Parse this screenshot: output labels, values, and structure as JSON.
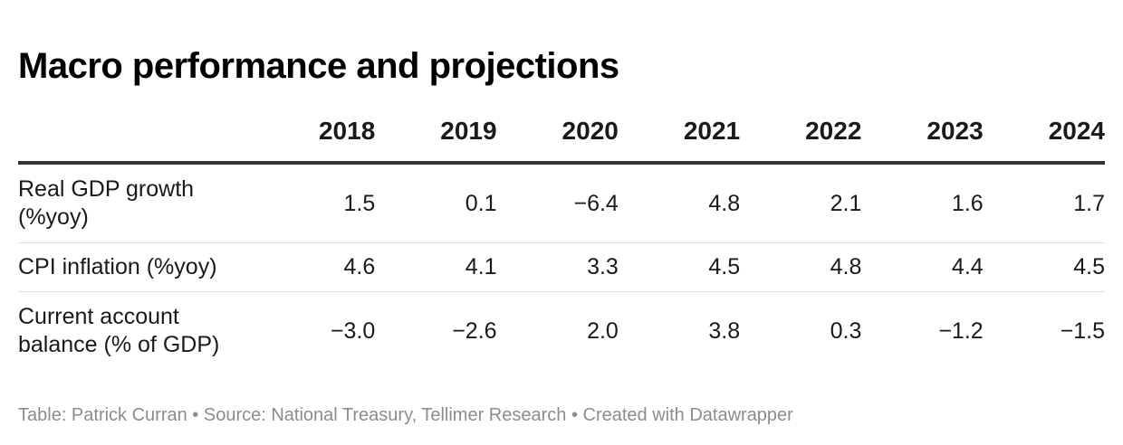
{
  "title": "Macro performance and projections",
  "chart_data": {
    "type": "table",
    "title": "Macro performance and projections",
    "columns": [
      "2018",
      "2019",
      "2020",
      "2021",
      "2022",
      "2023",
      "2024"
    ],
    "rows": [
      {
        "label": "Real GDP growth (%yoy)",
        "values": [
          "1.5",
          "0.1",
          "−6.4",
          "4.8",
          "2.1",
          "1.6",
          "1.7"
        ]
      },
      {
        "label": "CPI inflation (%yoy)",
        "values": [
          "4.6",
          "4.1",
          "3.3",
          "4.5",
          "4.8",
          "4.4",
          "4.5"
        ]
      },
      {
        "label": "Current account balance (% of GDP)",
        "values": [
          "−3.0",
          "−2.6",
          "2.0",
          "3.8",
          "0.3",
          "−1.2",
          "−1.5"
        ]
      }
    ]
  },
  "footer": {
    "text": "Table: Patrick Curran • Source: National Treasury, Tellimer Research • Created with Datawrapper"
  }
}
